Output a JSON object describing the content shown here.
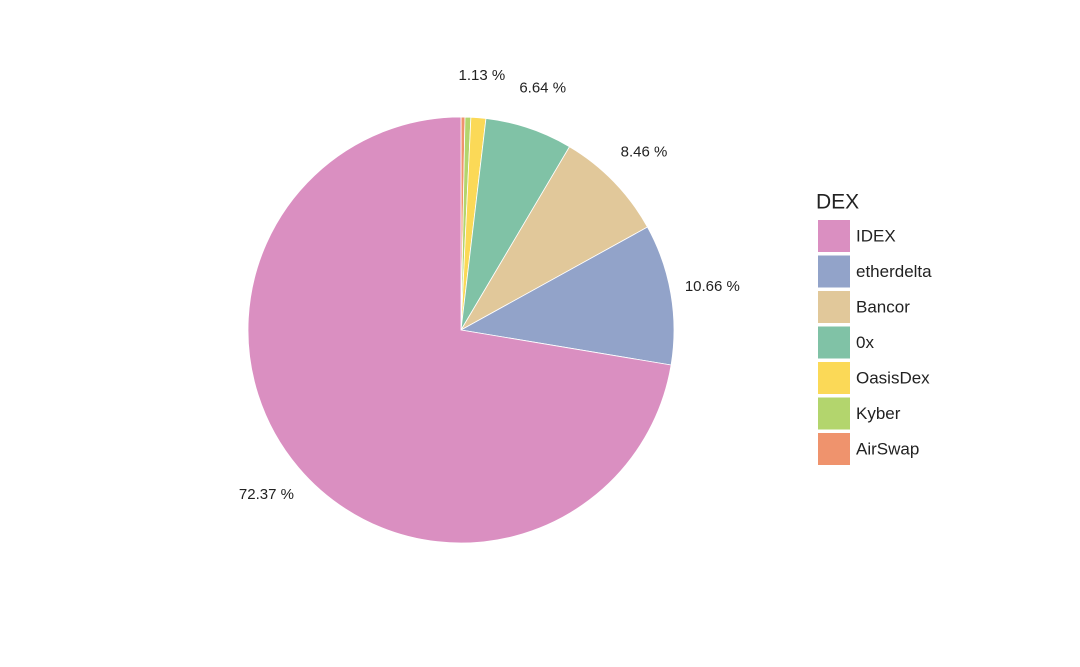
{
  "chart_data": {
    "type": "pie",
    "legend_title": "DEX",
    "categories": [
      "IDEX",
      "etherdelta",
      "Bancor",
      "0x",
      "OasisDex",
      "Kyber",
      "AirSwap"
    ],
    "values": [
      72.37,
      10.66,
      8.46,
      6.64,
      1.13,
      0.44,
      0.3
    ],
    "value_labels": [
      "72.37 %",
      "10.66 %",
      "8.46 %",
      "6.64 %",
      "1.13 %",
      null,
      null
    ],
    "colors": [
      "#da8fc1",
      "#92a3c9",
      "#e1c89a",
      "#80c2a6",
      "#fbd957",
      "#b3d56d",
      "#ef936d"
    ],
    "legend": "right"
  }
}
